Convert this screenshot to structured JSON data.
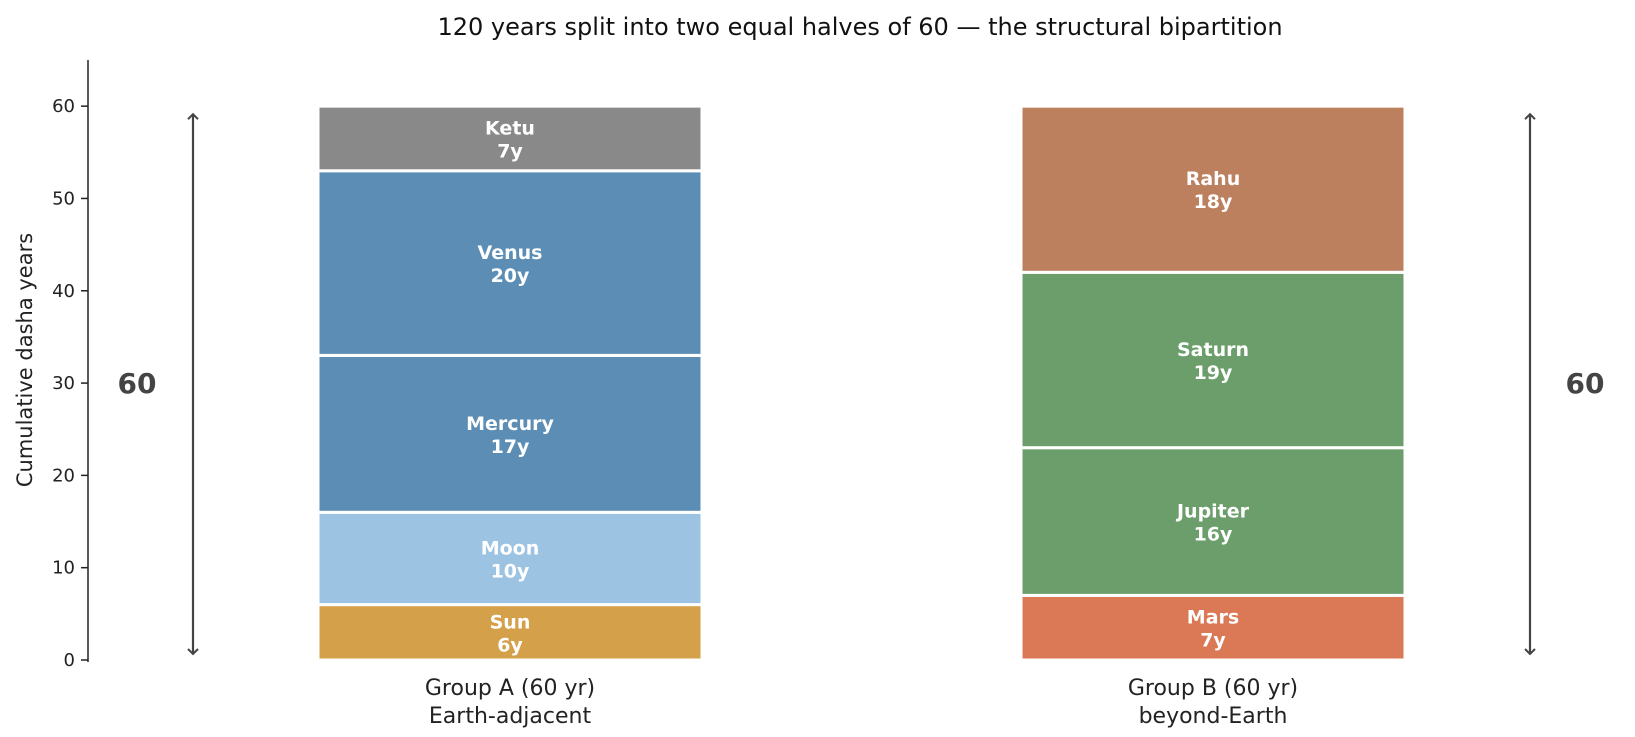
{
  "chart_data": {
    "type": "bar",
    "stacked": true,
    "title": "120 years split into two equal halves of 60 — the structural bipartition",
    "ylabel": "Cumulative dasha years",
    "xlabel": "",
    "ylim": [
      0,
      65
    ],
    "yticks": [
      0,
      10,
      20,
      30,
      40,
      50,
      60
    ],
    "grid": false,
    "groups": [
      {
        "label_line1": "Group A (60 yr)",
        "label_line2": "Earth-adjacent",
        "total_label": "60",
        "segments": [
          {
            "name": "Sun",
            "value": 6,
            "value_label": "6y",
            "color": "#D4A04A"
          },
          {
            "name": "Moon",
            "value": 10,
            "value_label": "10y",
            "color": "#9DC3E2"
          },
          {
            "name": "Mercury",
            "value": 17,
            "value_label": "17y",
            "color": "#5B8DB5"
          },
          {
            "name": "Venus",
            "value": 20,
            "value_label": "20y",
            "color": "#5B8DB5"
          },
          {
            "name": "Ketu",
            "value": 7,
            "value_label": "7y",
            "color": "#898989"
          }
        ]
      },
      {
        "label_line1": "Group B (60 yr)",
        "label_line2": "beyond-Earth",
        "total_label": "60",
        "segments": [
          {
            "name": "Mars",
            "value": 7,
            "value_label": "7y",
            "color": "#DB7856"
          },
          {
            "name": "Jupiter",
            "value": 16,
            "value_label": "16y",
            "color": "#6B9E6B"
          },
          {
            "name": "Saturn",
            "value": 19,
            "value_label": "19y",
            "color": "#6B9E6B"
          },
          {
            "name": "Rahu",
            "value": 18,
            "value_label": "18y",
            "color": "#BD805F"
          }
        ]
      }
    ],
    "span_value": 60,
    "arrow_color": "#444444"
  }
}
